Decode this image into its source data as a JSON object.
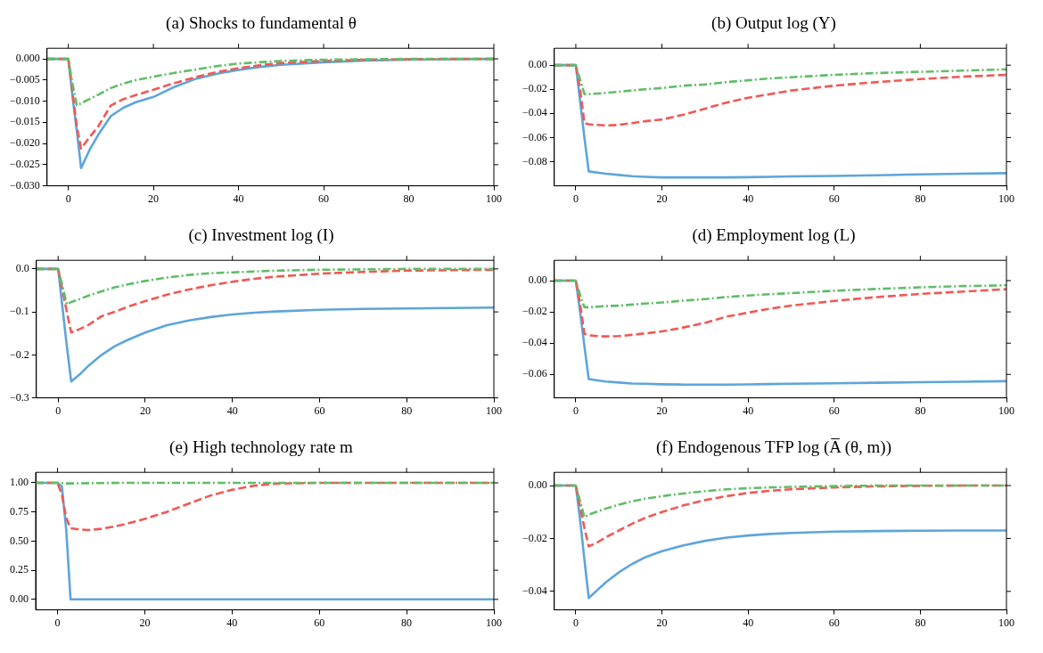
{
  "chart_data": [
    {
      "type": "line",
      "title": "(a) Shocks to fundamental θ",
      "x": [
        -5,
        0,
        1,
        2,
        3,
        5,
        7,
        10,
        13,
        16,
        20,
        25,
        30,
        35,
        40,
        45,
        50,
        60,
        70,
        80,
        90,
        100
      ],
      "xlim": [
        -5,
        100
      ],
      "xticks": [
        0,
        20,
        40,
        60,
        80,
        100
      ],
      "ylim": [
        -0.03,
        0.0025
      ],
      "yticks": [
        {
          "value": 0,
          "label": "0.000"
        },
        {
          "value": -0.005,
          "label": "−0.005"
        },
        {
          "value": -0.01,
          "label": "−0.010"
        },
        {
          "value": -0.015,
          "label": "−0.015"
        },
        {
          "value": -0.02,
          "label": "−0.020"
        },
        {
          "value": -0.025,
          "label": "−0.025"
        },
        {
          "value": -0.03,
          "label": "−0.030"
        }
      ],
      "series": [
        {
          "color": "#60bd68",
          "line_style": "dotted",
          "values": [
            0,
            0,
            -0.006,
            -0.011,
            -0.0105,
            -0.0095,
            -0.0085,
            -0.0069,
            -0.0058,
            -0.005,
            -0.0042,
            -0.0033,
            -0.0025,
            -0.0017,
            -0.0011,
            -0.0008,
            -0.0005,
            -0.0002,
            -0.0001,
            0,
            0,
            0
          ]
        },
        {
          "color": "#f15854",
          "line_style": "dashed",
          "values": [
            0,
            0,
            -0.008,
            -0.016,
            -0.0212,
            -0.0185,
            -0.016,
            -0.011,
            -0.0095,
            -0.0085,
            -0.0073,
            -0.0057,
            -0.0043,
            -0.0031,
            -0.0022,
            -0.0015,
            -0.001,
            -0.0005,
            -0.0002,
            -0.0001,
            0,
            0
          ]
        },
        {
          "color": "#5da5da",
          "line_style": "solid",
          "values": [
            0,
            0,
            -0.009,
            -0.017,
            -0.0258,
            -0.0215,
            -0.018,
            -0.0135,
            -0.0115,
            -0.0102,
            -0.009,
            -0.0066,
            -0.0047,
            -0.0035,
            -0.0026,
            -0.0019,
            -0.0014,
            -0.0008,
            -0.0004,
            -0.0002,
            -0.0001,
            0
          ]
        }
      ]
    },
    {
      "type": "line",
      "title": "(b) Output log (Y)",
      "x": [
        -5,
        0,
        1,
        2,
        3,
        5,
        7,
        10,
        13,
        16,
        20,
        25,
        30,
        35,
        40,
        45,
        50,
        60,
        70,
        80,
        90,
        100
      ],
      "xlim": [
        -5,
        100
      ],
      "xticks": [
        0,
        20,
        40,
        60,
        80,
        100
      ],
      "ylim": [
        -0.1,
        0.014
      ],
      "yticks": [
        {
          "value": 0,
          "label": "0.00"
        },
        {
          "value": -0.02,
          "label": "−0.02"
        },
        {
          "value": -0.04,
          "label": "−0.04"
        },
        {
          "value": -0.06,
          "label": "−0.06"
        },
        {
          "value": -0.08,
          "label": "−0.08"
        }
      ],
      "series": [
        {
          "color": "#60bd68",
          "line_style": "dotted",
          "values": [
            0,
            0,
            -0.012,
            -0.024,
            -0.024,
            -0.0235,
            -0.023,
            -0.022,
            -0.021,
            -0.02,
            -0.019,
            -0.017,
            -0.016,
            -0.014,
            -0.0125,
            -0.011,
            -0.01,
            -0.008,
            -0.0065,
            -0.0055,
            -0.0045,
            -0.0035
          ]
        },
        {
          "color": "#f15854",
          "line_style": "dashed",
          "values": [
            0,
            0,
            -0.02,
            -0.048,
            -0.049,
            -0.0495,
            -0.05,
            -0.0495,
            -0.048,
            -0.0465,
            -0.045,
            -0.041,
            -0.036,
            -0.031,
            -0.027,
            -0.024,
            -0.021,
            -0.017,
            -0.014,
            -0.0115,
            -0.0095,
            -0.008
          ]
        },
        {
          "color": "#5da5da",
          "line_style": "solid",
          "values": [
            0,
            0,
            -0.03,
            -0.06,
            -0.088,
            -0.089,
            -0.09,
            -0.091,
            -0.092,
            -0.0925,
            -0.093,
            -0.093,
            -0.093,
            -0.093,
            -0.0928,
            -0.0925,
            -0.0922,
            -0.0918,
            -0.0912,
            -0.0905,
            -0.09,
            -0.0895
          ]
        }
      ]
    },
    {
      "type": "line",
      "title": "(c) Investment log (I)",
      "x": [
        -5,
        0,
        1,
        2,
        3,
        5,
        7,
        10,
        13,
        16,
        20,
        25,
        30,
        35,
        40,
        45,
        50,
        60,
        70,
        80,
        90,
        100
      ],
      "xlim": [
        -5,
        100
      ],
      "xticks": [
        0,
        20,
        40,
        60,
        80,
        100
      ],
      "ylim": [
        -0.3,
        0.02
      ],
      "yticks": [
        {
          "value": 0,
          "label": "0.0"
        },
        {
          "value": -0.1,
          "label": "−0.1"
        },
        {
          "value": -0.2,
          "label": "−0.2"
        },
        {
          "value": -0.3,
          "label": "−0.3"
        }
      ],
      "series": [
        {
          "color": "#60bd68",
          "line_style": "dotted",
          "values": [
            0,
            0,
            -0.04,
            -0.083,
            -0.077,
            -0.07,
            -0.062,
            -0.052,
            -0.043,
            -0.036,
            -0.028,
            -0.02,
            -0.014,
            -0.01,
            -0.008,
            -0.006,
            -0.004,
            -0.002,
            -0.001,
            0,
            0,
            0
          ]
        },
        {
          "color": "#f15854",
          "line_style": "dashed",
          "values": [
            0,
            0,
            -0.05,
            -0.1,
            -0.148,
            -0.14,
            -0.13,
            -0.11,
            -0.1,
            -0.088,
            -0.075,
            -0.06,
            -0.048,
            -0.038,
            -0.03,
            -0.023,
            -0.018,
            -0.011,
            -0.007,
            -0.004,
            -0.003,
            -0.002
          ]
        },
        {
          "color": "#5da5da",
          "line_style": "solid",
          "values": [
            0,
            0,
            -0.09,
            -0.18,
            -0.262,
            -0.245,
            -0.225,
            -0.2,
            -0.18,
            -0.165,
            -0.148,
            -0.131,
            -0.12,
            -0.112,
            -0.106,
            -0.102,
            -0.099,
            -0.095,
            -0.093,
            -0.092,
            -0.091,
            -0.09
          ]
        }
      ]
    },
    {
      "type": "line",
      "title": "(d) Employment log (L)",
      "x": [
        -5,
        0,
        1,
        2,
        3,
        5,
        7,
        10,
        13,
        16,
        20,
        25,
        30,
        35,
        40,
        45,
        50,
        60,
        70,
        80,
        90,
        100
      ],
      "xlim": [
        -5,
        100
      ],
      "xticks": [
        0,
        20,
        40,
        60,
        80,
        100
      ],
      "ylim": [
        -0.075,
        0.013
      ],
      "yticks": [
        {
          "value": 0,
          "label": "0.00"
        },
        {
          "value": -0.02,
          "label": "−0.02"
        },
        {
          "value": -0.04,
          "label": "−0.04"
        },
        {
          "value": -0.06,
          "label": "−0.06"
        }
      ],
      "series": [
        {
          "color": "#60bd68",
          "line_style": "dotted",
          "values": [
            0,
            0,
            -0.009,
            -0.017,
            -0.017,
            -0.0167,
            -0.0163,
            -0.016,
            -0.0153,
            -0.0147,
            -0.014,
            -0.0128,
            -0.0118,
            -0.0105,
            -0.0095,
            -0.0087,
            -0.008,
            -0.0065,
            -0.0053,
            -0.0043,
            -0.0035,
            -0.003
          ]
        },
        {
          "color": "#f15854",
          "line_style": "dashed",
          "values": [
            0,
            0,
            -0.015,
            -0.034,
            -0.035,
            -0.0355,
            -0.0357,
            -0.0355,
            -0.0347,
            -0.0338,
            -0.0325,
            -0.03,
            -0.027,
            -0.023,
            -0.0205,
            -0.018,
            -0.016,
            -0.013,
            -0.0105,
            -0.0085,
            -0.007,
            -0.0055
          ]
        },
        {
          "color": "#5da5da",
          "line_style": "solid",
          "values": [
            0,
            0,
            -0.02,
            -0.042,
            -0.063,
            -0.0638,
            -0.0645,
            -0.0652,
            -0.0658,
            -0.066,
            -0.0663,
            -0.0665,
            -0.0665,
            -0.0665,
            -0.0664,
            -0.0662,
            -0.066,
            -0.0657,
            -0.0653,
            -0.065,
            -0.0647,
            -0.0643
          ]
        }
      ]
    },
    {
      "type": "line",
      "title": "(e) High technology rate m",
      "x": [
        -5,
        0,
        1,
        2,
        3,
        5,
        7,
        10,
        13,
        16,
        20,
        25,
        30,
        35,
        40,
        45,
        50,
        60,
        70,
        80,
        90,
        100
      ],
      "xlim": [
        -5,
        100
      ],
      "xticks": [
        0,
        20,
        40,
        60,
        80,
        100
      ],
      "ylim": [
        -0.09,
        1.09
      ],
      "yticks": [
        {
          "value": 0,
          "label": "0.00"
        },
        {
          "value": 0.25,
          "label": "0.25"
        },
        {
          "value": 0.5,
          "label": "0.50"
        },
        {
          "value": 0.75,
          "label": "0.75"
        },
        {
          "value": 1,
          "label": "1.00"
        }
      ],
      "series": [
        {
          "color": "#60bd68",
          "line_style": "dotted",
          "values": [
            1,
            1,
            0.998,
            0.995,
            0.995,
            0.996,
            0.997,
            0.998,
            0.999,
            1,
            1,
            1,
            1,
            1,
            1,
            1,
            1,
            1,
            1,
            1,
            1,
            1
          ]
        },
        {
          "color": "#f15854",
          "line_style": "dashed",
          "values": [
            1,
            1,
            0.9,
            0.7,
            0.61,
            0.6,
            0.595,
            0.605,
            0.625,
            0.65,
            0.69,
            0.75,
            0.82,
            0.89,
            0.94,
            0.975,
            0.993,
            1,
            1,
            1,
            1,
            1
          ]
        },
        {
          "color": "#5da5da",
          "line_style": "solid",
          "values": [
            1,
            1,
            0.97,
            0.6,
            0,
            0,
            0,
            0,
            0,
            0,
            0,
            0,
            0,
            0,
            0,
            0,
            0,
            0,
            0,
            0,
            0,
            0
          ]
        }
      ]
    },
    {
      "type": "line",
      "title": "(f) Endogenous TFP log (A̅ (θ, m))",
      "x": [
        -5,
        0,
        1,
        2,
        3,
        5,
        7,
        10,
        13,
        16,
        20,
        25,
        30,
        35,
        40,
        45,
        50,
        60,
        70,
        80,
        90,
        100
      ],
      "xlim": [
        -5,
        100
      ],
      "xticks": [
        0,
        20,
        40,
        60,
        80,
        100
      ],
      "ylim": [
        -0.047,
        0.005
      ],
      "yticks": [
        {
          "value": 0,
          "label": "0.00"
        },
        {
          "value": -0.02,
          "label": "−0.02"
        },
        {
          "value": -0.04,
          "label": "−0.04"
        }
      ],
      "series": [
        {
          "color": "#60bd68",
          "line_style": "dotted",
          "values": [
            0,
            0,
            -0.006,
            -0.012,
            -0.011,
            -0.0098,
            -0.0087,
            -0.0072,
            -0.006,
            -0.005,
            -0.004,
            -0.003,
            -0.0021,
            -0.0014,
            -0.001,
            -0.0007,
            -0.0005,
            -0.0002,
            0,
            0,
            0,
            0
          ]
        },
        {
          "color": "#f15854",
          "line_style": "dashed",
          "values": [
            0,
            0,
            -0.008,
            -0.016,
            -0.023,
            -0.0215,
            -0.0195,
            -0.017,
            -0.0145,
            -0.0123,
            -0.01,
            -0.0075,
            -0.0055,
            -0.004,
            -0.0028,
            -0.002,
            -0.0014,
            -0.0007,
            -0.0003,
            -0.0001,
            0,
            0
          ]
        },
        {
          "color": "#5da5da",
          "line_style": "solid",
          "values": [
            0,
            0,
            -0.013,
            -0.028,
            -0.0425,
            -0.0395,
            -0.0365,
            -0.0328,
            -0.0297,
            -0.0272,
            -0.0248,
            -0.0226,
            -0.0209,
            -0.0197,
            -0.0189,
            -0.0183,
            -0.0179,
            -0.0174,
            -0.0172,
            -0.0171,
            -0.017,
            -0.017
          ]
        }
      ]
    }
  ]
}
